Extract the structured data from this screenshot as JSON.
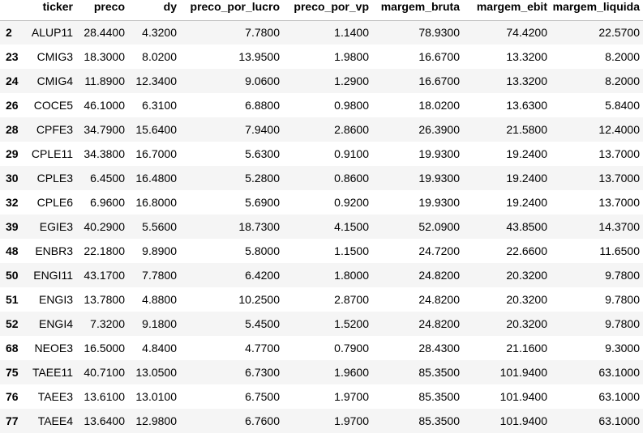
{
  "table": {
    "columns": [
      "",
      "ticker",
      "preco",
      "dy",
      "preco_por_lucro",
      "preco_por_vp",
      "margem_bruta",
      "margem_ebit",
      "margem_liquida"
    ],
    "rows": [
      {
        "index": "2",
        "cells": [
          "ALUP11",
          "28.4400",
          "4.3200",
          "7.7800",
          "1.1400",
          "78.9300",
          "74.4200",
          "22.5700"
        ]
      },
      {
        "index": "23",
        "cells": [
          "CMIG3",
          "18.3000",
          "8.0200",
          "13.9500",
          "1.9800",
          "16.6700",
          "13.3200",
          "8.2000"
        ]
      },
      {
        "index": "24",
        "cells": [
          "CMIG4",
          "11.8900",
          "12.3400",
          "9.0600",
          "1.2900",
          "16.6700",
          "13.3200",
          "8.2000"
        ]
      },
      {
        "index": "26",
        "cells": [
          "COCE5",
          "46.1000",
          "6.3100",
          "6.8800",
          "0.9800",
          "18.0200",
          "13.6300",
          "5.8400"
        ]
      },
      {
        "index": "28",
        "cells": [
          "CPFE3",
          "34.7900",
          "15.6400",
          "7.9400",
          "2.8600",
          "26.3900",
          "21.5800",
          "12.4000"
        ]
      },
      {
        "index": "29",
        "cells": [
          "CPLE11",
          "34.3800",
          "16.7000",
          "5.6300",
          "0.9100",
          "19.9300",
          "19.2400",
          "13.7000"
        ]
      },
      {
        "index": "30",
        "cells": [
          "CPLE3",
          "6.4500",
          "16.4800",
          "5.2800",
          "0.8600",
          "19.9300",
          "19.2400",
          "13.7000"
        ]
      },
      {
        "index": "32",
        "cells": [
          "CPLE6",
          "6.9600",
          "16.8000",
          "5.6900",
          "0.9200",
          "19.9300",
          "19.2400",
          "13.7000"
        ]
      },
      {
        "index": "39",
        "cells": [
          "EGIE3",
          "40.2900",
          "5.5600",
          "18.7300",
          "4.1500",
          "52.0900",
          "43.8500",
          "14.3700"
        ]
      },
      {
        "index": "48",
        "cells": [
          "ENBR3",
          "22.1800",
          "9.8900",
          "5.8000",
          "1.1500",
          "24.7200",
          "22.6600",
          "11.6500"
        ]
      },
      {
        "index": "50",
        "cells": [
          "ENGI11",
          "43.1700",
          "7.7800",
          "6.4200",
          "1.8000",
          "24.8200",
          "20.3200",
          "9.7800"
        ]
      },
      {
        "index": "51",
        "cells": [
          "ENGI3",
          "13.7800",
          "4.8800",
          "10.2500",
          "2.8700",
          "24.8200",
          "20.3200",
          "9.7800"
        ]
      },
      {
        "index": "52",
        "cells": [
          "ENGI4",
          "7.3200",
          "9.1800",
          "5.4500",
          "1.5200",
          "24.8200",
          "20.3200",
          "9.7800"
        ]
      },
      {
        "index": "68",
        "cells": [
          "NEOE3",
          "16.5000",
          "4.8400",
          "4.7700",
          "0.7900",
          "28.4300",
          "21.1600",
          "9.3000"
        ]
      },
      {
        "index": "75",
        "cells": [
          "TAEE11",
          "40.7100",
          "13.0500",
          "6.7300",
          "1.9600",
          "85.3500",
          "101.9400",
          "63.1000"
        ]
      },
      {
        "index": "76",
        "cells": [
          "TAEE3",
          "13.6100",
          "13.0100",
          "6.7500",
          "1.9700",
          "85.3500",
          "101.9400",
          "63.1000"
        ]
      },
      {
        "index": "77",
        "cells": [
          "TAEE4",
          "13.6400",
          "12.9800",
          "6.7600",
          "1.9700",
          "85.3500",
          "101.9400",
          "63.1000"
        ]
      }
    ]
  }
}
